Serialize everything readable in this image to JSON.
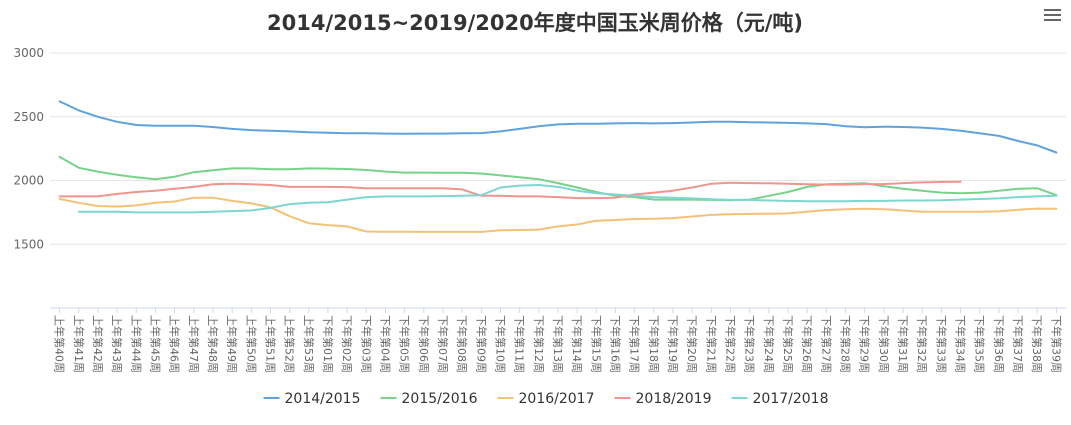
{
  "chart_data": {
    "type": "line",
    "title": "2014/2015~2019/2020年度中国玉米周价格（元/吨)",
    "xlabel": "",
    "ylabel": "",
    "ylim": [
      1000,
      3000
    ],
    "yticks": [
      1500,
      2000,
      2500,
      3000
    ],
    "grid": true,
    "legend_position": "bottom-center",
    "categories": [
      "上年第40周",
      "上年第41周",
      "上年第42周",
      "上年第43周",
      "上年第44周",
      "上年第45周",
      "上年第46周",
      "上年第47周",
      "上年第48周",
      "上年第49周",
      "上年第50周",
      "上年第51周",
      "上年第52周",
      "上年第53周",
      "下年第01周",
      "下年第02周",
      "下年第03周",
      "下年第04周",
      "下年第05周",
      "下年第06周",
      "下年第07周",
      "下年第08周",
      "下年第09周",
      "下年第10周",
      "下年第11周",
      "下年第12周",
      "下年第13周",
      "下年第14周",
      "下年第15周",
      "下年第16周",
      "下年第17周",
      "下年第18周",
      "下年第19周",
      "下年第20周",
      "下年第21周",
      "下年第22周",
      "下年第23周",
      "下年第24周",
      "下年第25周",
      "下年第26周",
      "下年第27周",
      "下年第28周",
      "下年第29周",
      "下年第30周",
      "下年第31周",
      "下年第32周",
      "下年第33周",
      "下年第34周",
      "下年第35周",
      "下年第36周",
      "下年第37周",
      "下年第38周",
      "下年第39周"
    ],
    "series": [
      {
        "name": "2014/2015",
        "color": "#5fa2dd",
        "values": [
          2620,
          2550,
          2500,
          2460,
          2435,
          2430,
          2430,
          2430,
          2420,
          2405,
          2395,
          2390,
          2385,
          2378,
          2375,
          2370,
          2370,
          2368,
          2366,
          2368,
          2368,
          2370,
          2372,
          2385,
          2405,
          2425,
          2440,
          2445,
          2445,
          2448,
          2450,
          2448,
          2450,
          2455,
          2460,
          2460,
          2457,
          2455,
          2452,
          2448,
          2442,
          2425,
          2418,
          2422,
          2420,
          2415,
          2405,
          2390,
          2370,
          2350,
          2310,
          2275,
          2220
        ]
      },
      {
        "name": "2015/2016",
        "color": "#77d28a",
        "values": [
          2185,
          2100,
          2070,
          2045,
          2025,
          2010,
          2030,
          2065,
          2080,
          2095,
          2095,
          2088,
          2088,
          2095,
          2093,
          2090,
          2082,
          2070,
          2062,
          2062,
          2060,
          2060,
          2055,
          2040,
          2025,
          2010,
          1980,
          1945,
          1910,
          1880,
          1870,
          1850,
          1850,
          1850,
          1848,
          1845,
          1850,
          1880,
          1910,
          1950,
          1970,
          1975,
          1978,
          1955,
          1935,
          1920,
          1905,
          1900,
          1905,
          1920,
          1935,
          1940,
          1885
        ]
      },
      {
        "name": "2016/2017",
        "color": "#f2c27a",
        "values": [
          1855,
          1825,
          1800,
          1795,
          1805,
          1825,
          1835,
          1865,
          1865,
          1840,
          1820,
          1790,
          1720,
          1665,
          1650,
          1640,
          1600,
          1598,
          1598,
          1597,
          1597,
          1597,
          1597,
          1610,
          1612,
          1615,
          1640,
          1655,
          1685,
          1690,
          1698,
          1700,
          1705,
          1718,
          1730,
          1735,
          1738,
          1740,
          1742,
          1755,
          1768,
          1775,
          1778,
          1775,
          1765,
          1755,
          1755,
          1755,
          1755,
          1758,
          1770,
          1780,
          1778
        ]
      },
      {
        "name": "2018/2019",
        "color": "#f0958e",
        "values": [
          1875,
          1875,
          1875,
          1895,
          1910,
          1920,
          1935,
          1950,
          1970,
          1975,
          1970,
          1965,
          1950,
          1950,
          1950,
          1948,
          1940,
          1940,
          1940,
          1940,
          1940,
          1930,
          1880,
          1880,
          1875,
          1875,
          1870,
          1862,
          1862,
          1865,
          1890,
          1905,
          1920,
          1945,
          1975,
          1983,
          1980,
          1978,
          1975,
          1970,
          1968,
          1968,
          1972,
          1972,
          1980,
          1985,
          1988,
          1990,
          null,
          null,
          null,
          null,
          null
        ]
      },
      {
        "name": "2017/2018",
        "color": "#7dd6d0",
        "values": [
          null,
          1755,
          1755,
          1755,
          1750,
          1750,
          1750,
          1750,
          1755,
          1760,
          1765,
          1785,
          1815,
          1825,
          1830,
          1850,
          1870,
          1875,
          1875,
          1875,
          1878,
          1880,
          1885,
          1945,
          1960,
          1965,
          1950,
          1920,
          1900,
          1890,
          1880,
          1870,
          1865,
          1860,
          1853,
          1848,
          1848,
          1843,
          1840,
          1838,
          1838,
          1838,
          1840,
          1840,
          1843,
          1843,
          1845,
          1850,
          1855,
          1860,
          1870,
          1875,
          1880
        ]
      }
    ]
  }
}
